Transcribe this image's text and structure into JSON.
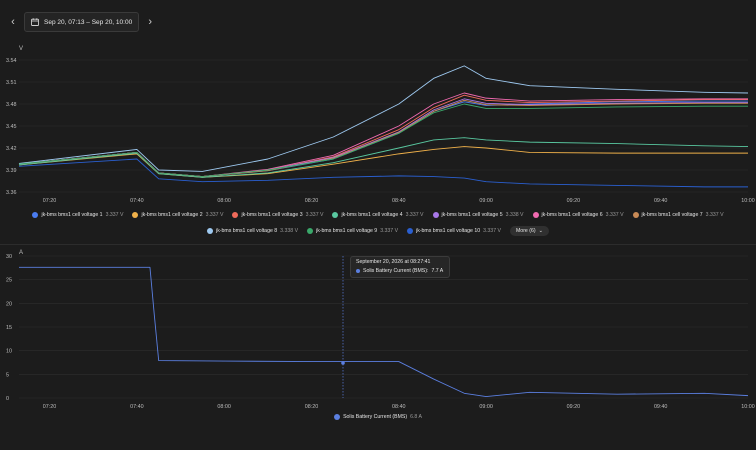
{
  "toolbar": {
    "prev_icon": "chevron-left-icon",
    "next_icon": "chevron-right-icon",
    "calendar_icon": "calendar-icon",
    "date_range": "Sep 20, 07:13 – Sep 20, 10:00"
  },
  "voltage_chart": {
    "unit_label": "V",
    "y_ticks": [
      "3.36",
      "3.39",
      "3.42",
      "3.45",
      "3.48",
      "3.51",
      "3.54"
    ],
    "x_ticks": [
      "07:20",
      "07:40",
      "08:00",
      "08:20",
      "08:40",
      "09:00",
      "09:20",
      "09:40",
      "10:00"
    ],
    "legend": [
      {
        "label": "jk-bms bms1 cell voltage 1",
        "value": "3.337 V",
        "color": "#4a7cf0"
      },
      {
        "label": "jk-bms bms1 cell voltage 2",
        "value": "3.337 V",
        "color": "#f0b14a"
      },
      {
        "label": "jk-bms bms1 cell voltage 3",
        "value": "3.337 V",
        "color": "#ef6a5a"
      },
      {
        "label": "jk-bms bms1 cell voltage 4",
        "value": "3.337 V",
        "color": "#59c8a0"
      },
      {
        "label": "jk-bms bms1 cell voltage 5",
        "value": "3.338 V",
        "color": "#a878e8"
      },
      {
        "label": "jk-bms bms1 cell voltage 6",
        "value": "3.337 V",
        "color": "#f06ab0"
      },
      {
        "label": "jk-bms bms1 cell voltage 7",
        "value": "3.337 V",
        "color": "#c88a56"
      },
      {
        "label": "jk-bms bms1 cell voltage 8",
        "value": "3.338 V",
        "color": "#9ec9f0"
      },
      {
        "label": "jk-bms bms1 cell voltage 9",
        "value": "3.337 V",
        "color": "#3aa86a"
      },
      {
        "label": "jk-bms bms1 cell voltage 10",
        "value": "3.337 V",
        "color": "#2a5fd0"
      }
    ],
    "more_label": "More (6)"
  },
  "current_chart": {
    "unit_label": "A",
    "y_ticks": [
      "0",
      "5",
      "10",
      "15",
      "20",
      "25",
      "30"
    ],
    "x_ticks": [
      "07:20",
      "07:40",
      "08:00",
      "08:20",
      "08:40",
      "09:00",
      "09:20",
      "09:40",
      "10:00"
    ],
    "legend": [
      {
        "label": "Solis Battery Current (BMS)",
        "value": "6.8 A",
        "color": "#5b7fe0"
      }
    ],
    "tooltip": {
      "time": "September 20, 2026 at 08:27:41",
      "series": "Solis Battery Current (BMS):",
      "value": "7.7 A"
    }
  },
  "chart_data": [
    {
      "type": "line",
      "ylabel": "V",
      "ylim": [
        3.36,
        3.54
      ],
      "x": [
        "07:13",
        "07:40",
        "07:45",
        "07:55",
        "08:10",
        "08:25",
        "08:40",
        "08:48",
        "08:55",
        "09:00",
        "09:10",
        "09:30",
        "09:50",
        "10:00"
      ],
      "series": [
        {
          "name": "jk-bms bms1 cell voltage 1",
          "color": "#4a7cf0",
          "values": [
            3.398,
            3.414,
            3.386,
            3.381,
            3.389,
            3.405,
            3.44,
            3.47,
            3.483,
            3.478,
            3.48,
            3.483,
            3.484,
            3.484
          ]
        },
        {
          "name": "jk-bms bms1 cell voltage 2",
          "color": "#f0b14a",
          "values": [
            3.397,
            3.412,
            3.385,
            3.38,
            3.385,
            3.398,
            3.412,
            3.418,
            3.422,
            3.42,
            3.414,
            3.413,
            3.413,
            3.413
          ]
        },
        {
          "name": "jk-bms bms1 cell voltage 3",
          "color": "#ef6a5a",
          "values": [
            3.398,
            3.414,
            3.386,
            3.381,
            3.39,
            3.408,
            3.445,
            3.475,
            3.492,
            3.485,
            3.482,
            3.484,
            3.486,
            3.486
          ]
        },
        {
          "name": "jk-bms bms1 cell voltage 4",
          "color": "#59c8a0",
          "values": [
            3.397,
            3.413,
            3.385,
            3.38,
            3.386,
            3.4,
            3.42,
            3.431,
            3.434,
            3.431,
            3.428,
            3.426,
            3.423,
            3.422
          ]
        },
        {
          "name": "jk-bms bms1 cell voltage 5",
          "color": "#a878e8",
          "values": [
            3.398,
            3.414,
            3.386,
            3.381,
            3.39,
            3.407,
            3.442,
            3.472,
            3.487,
            3.481,
            3.479,
            3.481,
            3.482,
            3.482
          ]
        },
        {
          "name": "jk-bms bms1 cell voltage 6",
          "color": "#f06ab0",
          "values": [
            3.398,
            3.414,
            3.386,
            3.381,
            3.391,
            3.41,
            3.45,
            3.48,
            3.495,
            3.488,
            3.484,
            3.486,
            3.487,
            3.487
          ]
        },
        {
          "name": "jk-bms bms1 cell voltage 7",
          "color": "#c88a56",
          "values": [
            3.398,
            3.414,
            3.386,
            3.381,
            3.389,
            3.406,
            3.441,
            3.47,
            3.485,
            3.479,
            3.478,
            3.48,
            3.481,
            3.481
          ]
        },
        {
          "name": "jk-bms bms1 cell voltage 8",
          "color": "#9ec9f0",
          "values": [
            3.399,
            3.418,
            3.39,
            3.388,
            3.405,
            3.435,
            3.48,
            3.515,
            3.532,
            3.515,
            3.505,
            3.5,
            3.496,
            3.495
          ]
        },
        {
          "name": "jk-bms bms1 cell voltage 9",
          "color": "#3aa86a",
          "values": [
            3.398,
            3.414,
            3.386,
            3.381,
            3.39,
            3.405,
            3.44,
            3.468,
            3.48,
            3.474,
            3.474,
            3.476,
            3.477,
            3.477
          ]
        },
        {
          "name": "jk-bms bms1 cell voltage 10",
          "color": "#2a5fd0",
          "values": [
            3.395,
            3.405,
            3.378,
            3.374,
            3.376,
            3.38,
            3.382,
            3.381,
            3.379,
            3.374,
            3.371,
            3.369,
            3.367,
            3.367
          ]
        }
      ]
    },
    {
      "type": "line",
      "ylabel": "A",
      "ylim": [
        0,
        30
      ],
      "x": [
        "07:13",
        "07:43",
        "07:44",
        "07:45",
        "08:00",
        "08:20",
        "08:40",
        "08:48",
        "08:55",
        "09:00",
        "09:10",
        "09:30",
        "09:50",
        "10:00"
      ],
      "series": [
        {
          "name": "Solis Battery Current (BMS)",
          "color": "#5b7fe0",
          "values": [
            27.6,
            27.6,
            17.5,
            7.9,
            7.8,
            7.7,
            7.7,
            4.0,
            1.0,
            0.3,
            1.2,
            0.8,
            1.0,
            0.5
          ]
        }
      ]
    }
  ]
}
